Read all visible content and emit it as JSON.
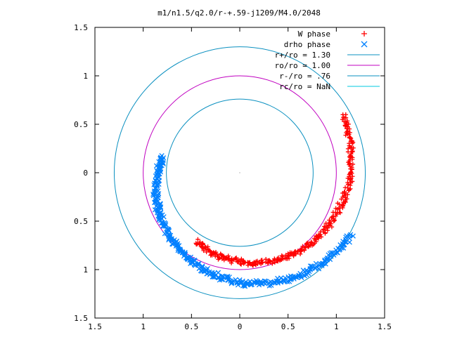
{
  "chart_data": {
    "type": "scatter",
    "title": "m1/n1.5/q2.0/r-+.59-j1209/M4.0/2048",
    "xlabel": "",
    "ylabel": "",
    "xlim": [
      -1.5,
      1.5
    ],
    "ylim": [
      -1.5,
      1.5
    ],
    "x_tick_labels": [
      "1.5",
      "1",
      "0.5",
      "0",
      "0.5",
      "1",
      "1.5"
    ],
    "y_tick_labels": [
      "1.5",
      "1",
      "0.5",
      "0",
      "0.5",
      "1",
      "1.5"
    ],
    "x_ticks": [
      -1.5,
      -1,
      -0.5,
      0,
      0.5,
      1,
      1.5
    ],
    "y_ticks": [
      1.5,
      1,
      0.5,
      0,
      -0.5,
      -1,
      -1.5
    ],
    "grid": false,
    "legend_position": "top-right",
    "colors": {
      "w_phase": "#ff0000",
      "drho_phase": "#0080ff",
      "r_plus": "#0b90c0",
      "ro": "#c000c0",
      "r_minus": "#0b90c0",
      "rc": "#00c8e0"
    },
    "series": [
      {
        "name": "W phase",
        "marker": "plus",
        "arc": {
          "start_deg": 29,
          "end_deg": 238,
          "r_start": 1.22,
          "r_end": 0.84,
          "points": [
            [
              1.07,
              0.67
            ],
            [
              1.2,
              0.35
            ],
            [
              1.22,
              0.0
            ],
            [
              1.12,
              -0.32
            ],
            [
              0.99,
              -0.57
            ],
            [
              0.86,
              -0.69
            ],
            [
              0.62,
              -0.88
            ],
            [
              0.35,
              -1.0
            ],
            [
              0.08,
              -1.04
            ],
            [
              -0.16,
              -1.02
            ],
            [
              -0.35,
              -0.95
            ],
            [
              -0.51,
              -0.82
            ],
            [
              -0.48,
              -0.65
            ]
          ]
        }
      },
      {
        "name": "drho phase",
        "marker": "cross",
        "arc": {
          "start_deg": 168,
          "end_deg": 331,
          "r_start": 0.81,
          "r_end": 1.32,
          "points": [
            [
              -0.79,
              0.16
            ],
            [
              -0.87,
              -0.13
            ],
            [
              -0.82,
              -0.38
            ],
            [
              -0.68,
              -0.62
            ],
            [
              -0.45,
              -0.86
            ],
            [
              -0.18,
              -1.04
            ],
            [
              0.13,
              -1.1
            ],
            [
              0.44,
              -1.06
            ],
            [
              0.73,
              -0.93
            ],
            [
              0.97,
              -0.78
            ],
            [
              1.12,
              -0.65
            ]
          ]
        }
      }
    ],
    "circles": [
      {
        "name": "r+/ro = 1.30",
        "radius": 1.3
      },
      {
        "name": "ro/ro = 1.00",
        "radius": 1.0
      },
      {
        "name": "r-/ro = .76",
        "radius": 0.76
      },
      {
        "name": "rc/ro = NaN",
        "radius": null
      }
    ]
  }
}
